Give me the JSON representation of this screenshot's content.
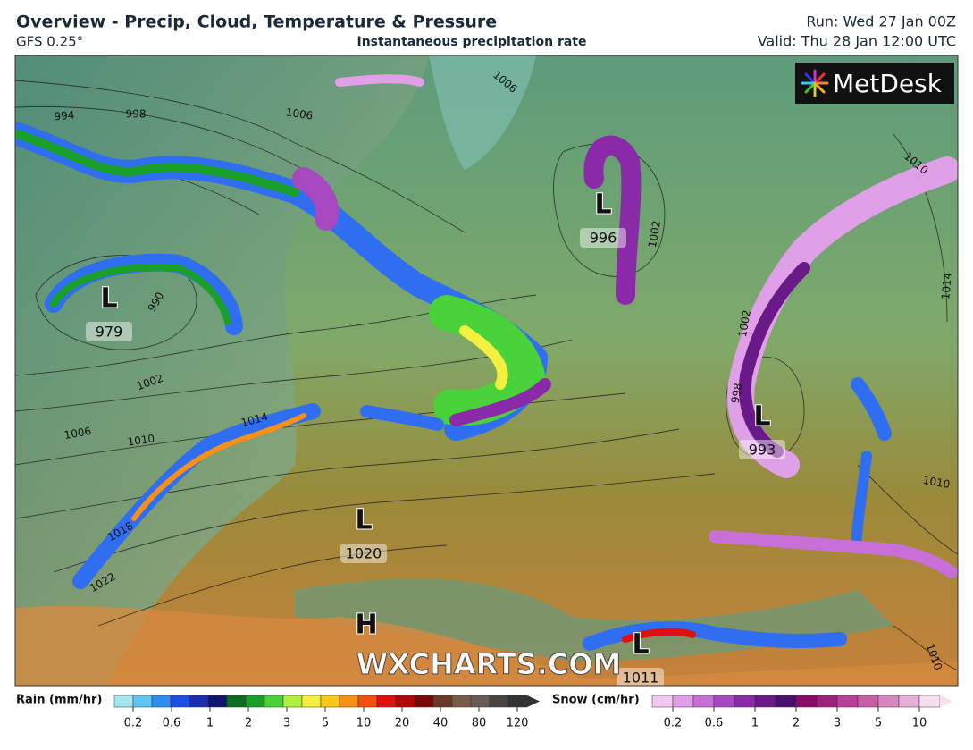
{
  "header": {
    "title": "Overview - Precip, Cloud, Temperature & Pressure",
    "model": "GFS 0.25°",
    "subtitle": "Instantaneous precipitation rate",
    "run": "Run: Wed 27 Jan 00Z",
    "valid": "Valid: Thu 28 Jan 12:00 UTC"
  },
  "logo": "MetDesk",
  "watermark": "WXCHARTS.COM",
  "pressure_centers": [
    {
      "type": "L",
      "value": "979"
    },
    {
      "type": "L",
      "value": "996"
    },
    {
      "type": "L",
      "value": "993"
    },
    {
      "type": "L",
      "value": "1020"
    },
    {
      "type": "H"
    },
    {
      "type": "L",
      "value": "1011"
    }
  ],
  "isobar_labels": [
    "994",
    "998",
    "1006",
    "1006",
    "990",
    "1002",
    "1006",
    "1010",
    "1014",
    "1018",
    "1022",
    "1002",
    "1010",
    "1014",
    "1002",
    "998",
    "1010",
    "1010"
  ],
  "legend": {
    "rain": {
      "label": "Rain (mm/hr)",
      "ticks": [
        "0.2",
        "0.6",
        "1",
        "2",
        "3",
        "5",
        "10",
        "20",
        "40",
        "80",
        "120"
      ],
      "colors": [
        "#a6e6ee",
        "#5ec6f0",
        "#2f8cf0",
        "#1f4fe0",
        "#1a2fb0",
        "#10156e",
        "#0b6e1f",
        "#18a028",
        "#49d23a",
        "#b0f040",
        "#f4f040",
        "#f8c820",
        "#f89018",
        "#f05010",
        "#e01010",
        "#b00808",
        "#7a0808",
        "#6a3a28",
        "#7a5a48",
        "#6a5a55",
        "#4a4444",
        "#333"
      ]
    },
    "snow": {
      "label": "Snow (cm/hr)",
      "ticks": [
        "0.2",
        "0.6",
        "1",
        "2",
        "3",
        "5",
        "10"
      ],
      "colors": [
        "#f2c8f2",
        "#e0a0e8",
        "#c870d8",
        "#a848c0",
        "#8a2aa8",
        "#6a1a88",
        "#4a1070",
        "#8a0a6a",
        "#a02080",
        "#b84098",
        "#c860a8",
        "#d888c0",
        "#e8b0d8",
        "#f6e0f0"
      ]
    }
  }
}
